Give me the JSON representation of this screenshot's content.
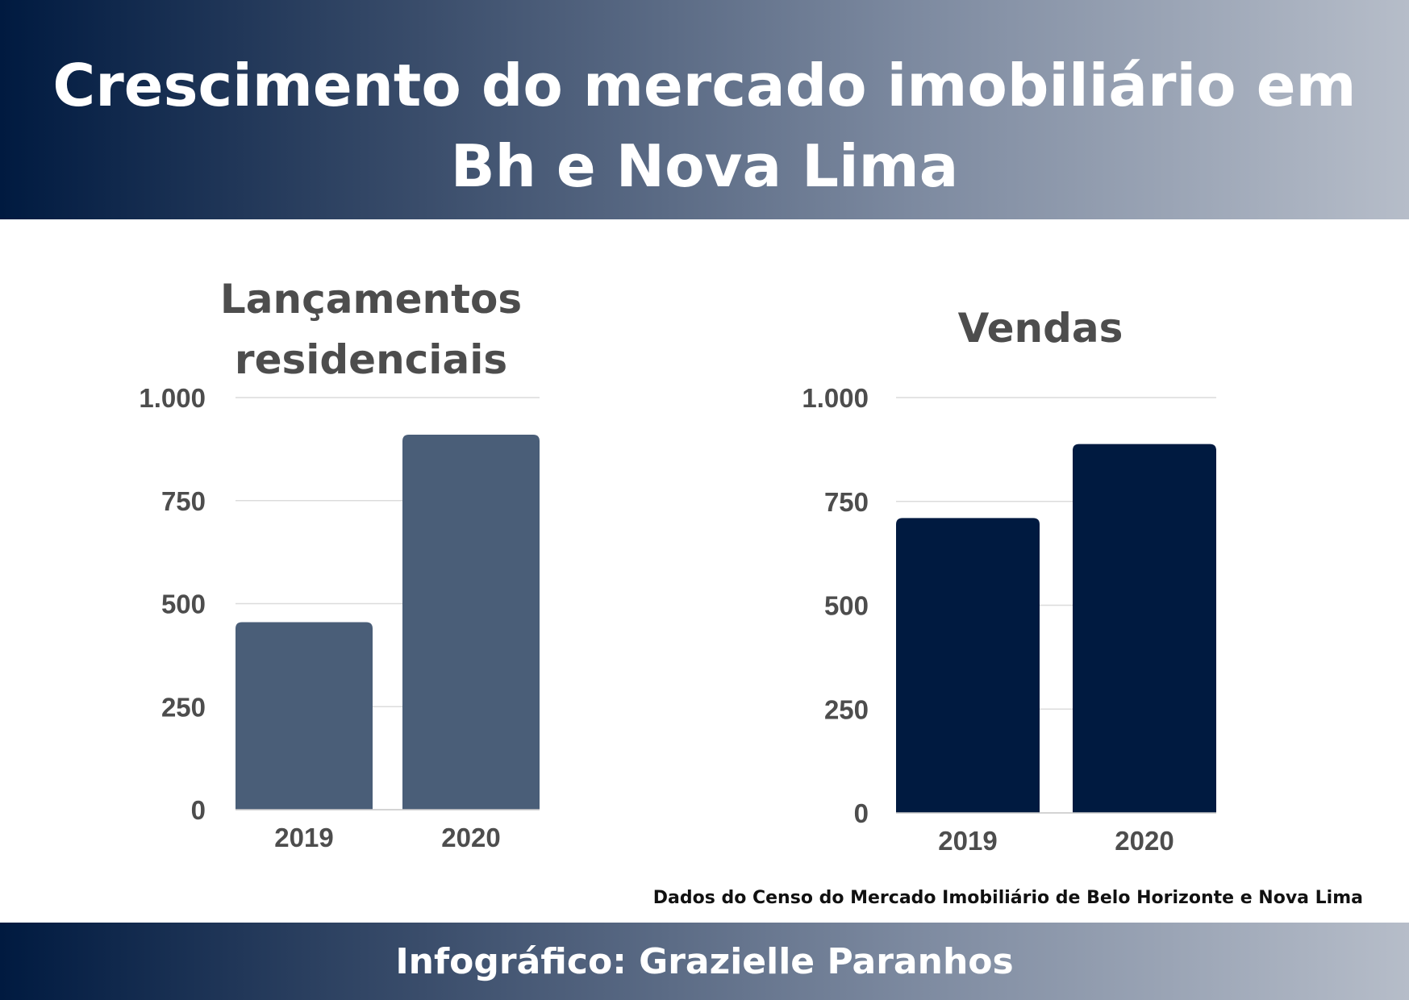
{
  "header": {
    "title_line1": "Crescimento do mercado imobiliário em",
    "title_line2": "Bh e Nova Lima"
  },
  "chart_data": [
    {
      "type": "bar",
      "title_line1": "Lançamentos",
      "title_line2": "residenciais",
      "categories": [
        "2019",
        "2020"
      ],
      "values": [
        455,
        910
      ],
      "ylim": [
        0,
        1000
      ],
      "yticks": [
        0,
        250,
        500,
        750,
        1000
      ],
      "ytick_labels": [
        "0",
        "250",
        "500",
        "750",
        "1.000"
      ],
      "grid": true,
      "color": "#4a5e78"
    },
    {
      "type": "bar",
      "title": "Vendas",
      "categories": [
        "2019",
        "2020"
      ],
      "values": [
        710,
        888
      ],
      "ylim": [
        0,
        1000
      ],
      "yticks": [
        0,
        250,
        500,
        750,
        1000
      ],
      "ytick_labels": [
        "0",
        "250",
        "500",
        "750",
        "1.000"
      ],
      "grid": true,
      "color": "#001a40"
    }
  ],
  "source": "Dados do Censo do Mercado Imobiliário de Belo Horizonte e Nova Lima",
  "footer": {
    "credit": "Infográfico: Grazielle Paranhos"
  }
}
